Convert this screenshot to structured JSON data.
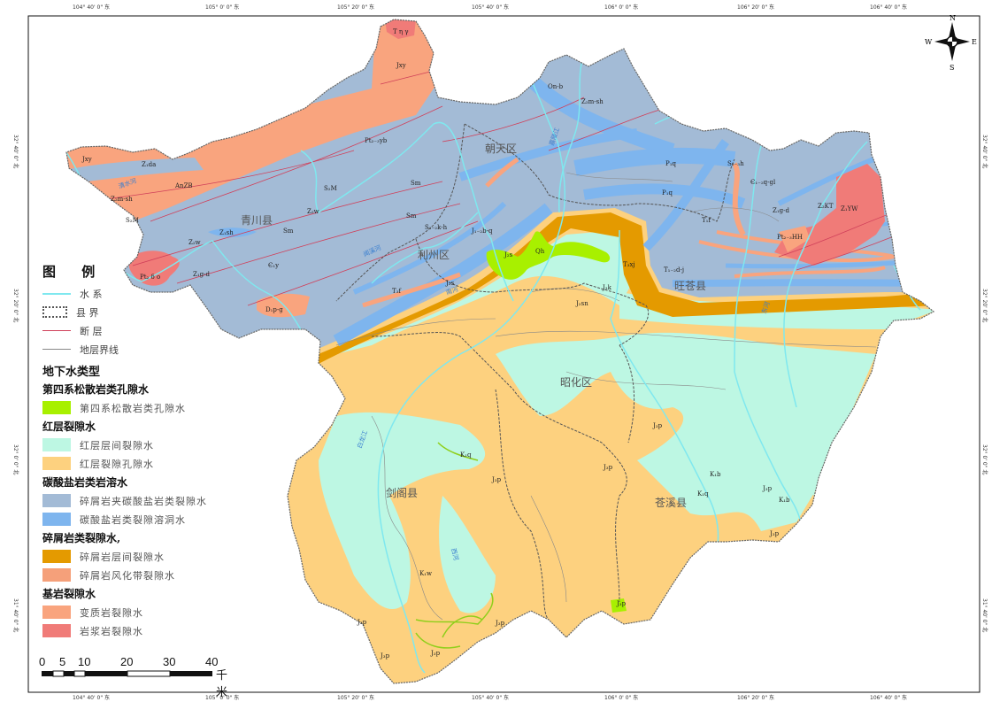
{
  "coordinates": {
    "longitudes": [
      "104° 40' 0\" 东",
      "105° 0' 0\" 东",
      "105° 20' 0\" 东",
      "105° 40' 0\" 东",
      "106° 0' 0\" 东",
      "106° 20' 0\" 东",
      "106° 40' 0\" 东"
    ],
    "latitudes": [
      "32° 40' 0\" 北",
      "32° 20' 0\" 北",
      "32° 0' 0\" 北",
      "31° 40' 0\" 北"
    ]
  },
  "compass": {
    "n": "N",
    "s": "S",
    "e": "E",
    "w": "W"
  },
  "counties": [
    "青川县",
    "朝天区",
    "利州区",
    "旺苍县",
    "昭化区",
    "剑阁县",
    "苍溪县"
  ],
  "formations": [
    "T η γ",
    "Jxy",
    "Jxy",
    "Z₁da",
    "AnZB",
    "Z₂m-sh",
    "S₂M",
    "Pt₂₋₃yb",
    "S₂M",
    "Z₂w",
    "Sm",
    "Sm",
    "Sm",
    "Z₁sh",
    "Z₂w",
    "Z₁g-d",
    "Pt₂ δ o",
    "Є₁y",
    "D₁p-g",
    "S₁₋₂k-h",
    "J₁₋₂b-q",
    "J₂s",
    "Qh",
    "J₂s",
    "T₃f",
    "On-b",
    "Z₂m-sh",
    "P₁q",
    "P₁q",
    "S₂₋₃h",
    "Є₁₋₂q-gl",
    "Z₁g-d",
    "Z₂KT",
    "Z₁YW",
    "Pt₂₋₃HH",
    "T₁f",
    "T₃xj",
    "T₁₋₂d-j",
    "J₃k",
    "J₂sn",
    "J₃p",
    "K₁q",
    "J₃p",
    "K₁b",
    "K₁q",
    "J₃p",
    "K₁b",
    "J₃p",
    "K₁w",
    "J₃p",
    "J₃p",
    "J₃p",
    "J₃p",
    "J₃p",
    "J₃p"
  ],
  "rivers": [
    "清水河",
    "嘉陵江",
    "南河",
    "白龙江",
    "东河",
    "西河",
    "闻溪河"
  ],
  "legend": {
    "title": "图  例",
    "lines": [
      {
        "label": "水  系",
        "color": "#7fe8ef"
      },
      {
        "label": "县  界",
        "color": "#555555"
      },
      {
        "label": "断  层",
        "color": "#d0405a"
      },
      {
        "label": "地层界线",
        "color": "#888888"
      }
    ],
    "section_title": "地下水类型",
    "groups": [
      {
        "title": "第四系松散岩类孔隙水",
        "items": [
          {
            "label": "第四系松散岩类孔隙水",
            "color": "#a8f000"
          }
        ]
      },
      {
        "title": "红层裂隙水",
        "items": [
          {
            "label": "红层层间裂隙水",
            "color": "#bdf7e3"
          },
          {
            "label": "红层裂隙孔隙水",
            "color": "#fdd17f"
          }
        ]
      },
      {
        "title": "碳酸盐岩类岩溶水",
        "items": [
          {
            "label": "碎屑岩夹碳酸盐岩类裂隙水",
            "color": "#a3bbd6"
          },
          {
            "label": "碳酸盐岩类裂隙溶洞水",
            "color": "#7eb5ee"
          }
        ]
      },
      {
        "title": "碎屑岩类裂隙水,",
        "items": [
          {
            "label": "碎屑岩层间裂隙水",
            "color": "#e49a00"
          },
          {
            "label": "碎屑岩风化带裂隙水",
            "color": "#f5a07a"
          }
        ]
      },
      {
        "title": "基岩裂隙水",
        "items": [
          {
            "label": "变质岩裂隙水",
            "color": "#f9a47e"
          },
          {
            "label": "岩浆岩裂隙水",
            "color": "#f07b78"
          }
        ]
      }
    ]
  },
  "scale_bar": {
    "ticks": [
      "0",
      "5",
      "10",
      "20",
      "30",
      "40"
    ],
    "unit": "千米"
  }
}
